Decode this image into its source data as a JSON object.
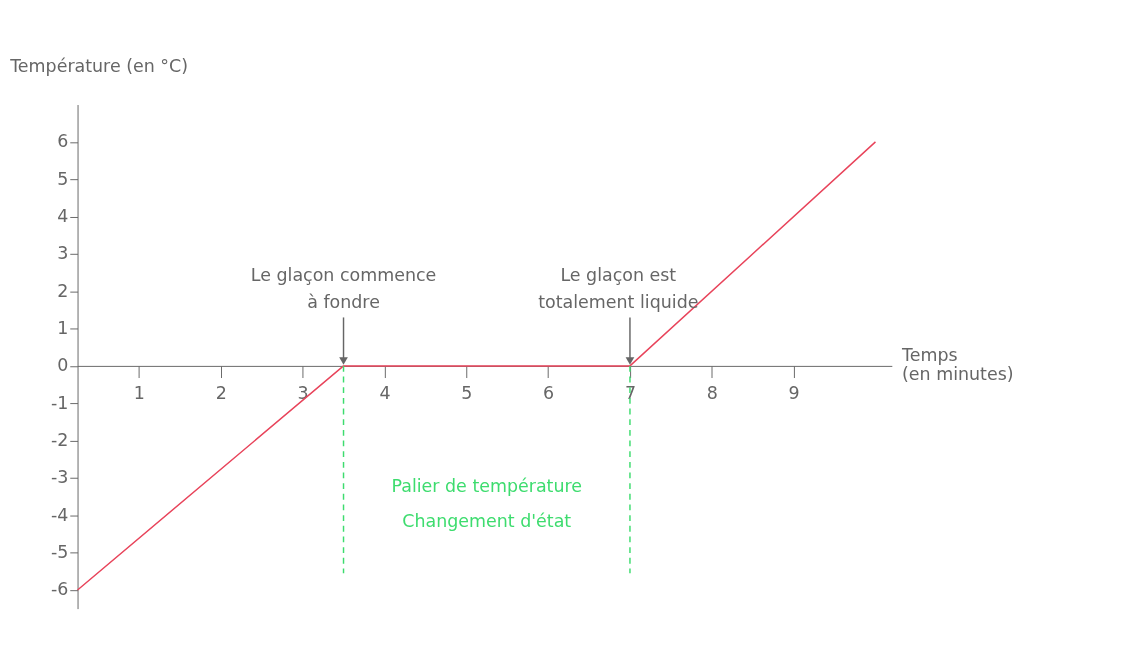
{
  "chart_data": {
    "type": "line",
    "xlabel": "Temps (en minutes)",
    "ylabel": "Température (en °C)",
    "x": [
      0.25,
      3.5,
      7,
      10
    ],
    "series": [
      {
        "color": "#e8435a",
        "values": [
          -6,
          0,
          0,
          6
        ]
      }
    ],
    "xlim": [
      0.25,
      10.2
    ],
    "ylim": [
      -6.5,
      7
    ],
    "xticks": [
      1,
      2,
      3,
      4,
      5,
      6,
      7,
      8,
      9
    ],
    "yticks": [
      -6,
      -5,
      -4,
      -3,
      -2,
      -1,
      0,
      1,
      2,
      3,
      4,
      5,
      6
    ],
    "ref_lines": [
      {
        "axis": "x",
        "value": 3.5,
        "color": "#3ddc6e",
        "line_style": "dashed"
      },
      {
        "axis": "x",
        "value": 7,
        "color": "#3ddc6e",
        "line_style": "dashed"
      }
    ],
    "annotations": [
      {
        "text": "Le glaçon commence\nà fondre",
        "x": 3.5,
        "y": 0
      },
      {
        "text": "Le glaçon est\ntotalement liquide",
        "x": 7,
        "y": 0
      },
      "Palier de température\nChangement d'état"
    ],
    "grid": false,
    "marker": "none",
    "line_style": "solid"
  }
}
